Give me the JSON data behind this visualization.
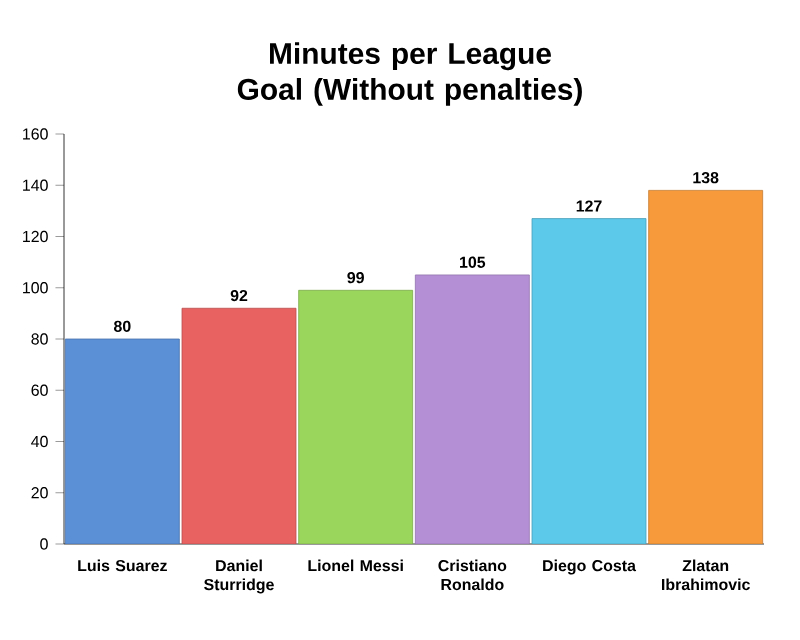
{
  "chart_data": {
    "type": "bar",
    "title": "Minutes per League Goal (Without penalties)",
    "categories": [
      "Luis Suarez",
      "Daniel Sturridge",
      "Lionel Messi",
      "Cristiano Ronaldo",
      "Diego Costa",
      "Zlatan Ibrahimovic"
    ],
    "values": [
      80,
      92,
      99,
      105,
      127,
      138
    ],
    "colors": [
      "#5b8fd6",
      "#e86262",
      "#9bd65c",
      "#b48fd6",
      "#5cc8ea",
      "#f69a3c"
    ],
    "ylim": [
      0,
      160
    ],
    "yticks": [
      0,
      20,
      40,
      60,
      80,
      100,
      120,
      140,
      160
    ],
    "data_labels": true
  }
}
